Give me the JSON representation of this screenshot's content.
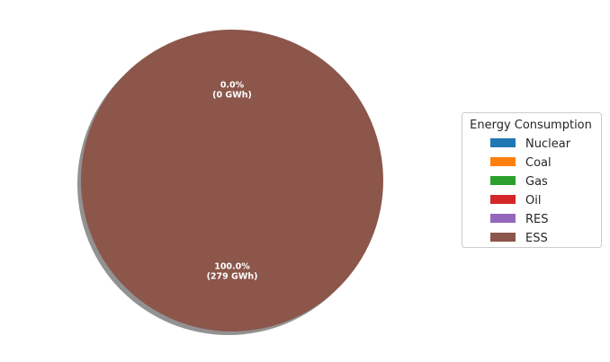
{
  "chart_data": {
    "type": "pie",
    "slices": [
      {
        "label": "Nuclear",
        "value": 0,
        "color": "#1f77b4",
        "text": "0.0%\n(0 GWh)"
      },
      {
        "label": "Coal",
        "value": 0,
        "color": "#ff7f0e",
        "text": ""
      },
      {
        "label": "Gas",
        "value": 0,
        "color": "#2ca02c",
        "text": ""
      },
      {
        "label": "Oil",
        "value": 0,
        "color": "#d62728",
        "text": ""
      },
      {
        "label": "RES",
        "value": 0,
        "color": "#9467bd",
        "text": ""
      },
      {
        "label": "ESS",
        "value": 279,
        "color": "#8c564b",
        "text": "100.0%\n(279 GWh)"
      }
    ],
    "unit": "GWh",
    "legend": {
      "title": "Energy Consumption",
      "position": "right"
    },
    "shadow": true
  }
}
